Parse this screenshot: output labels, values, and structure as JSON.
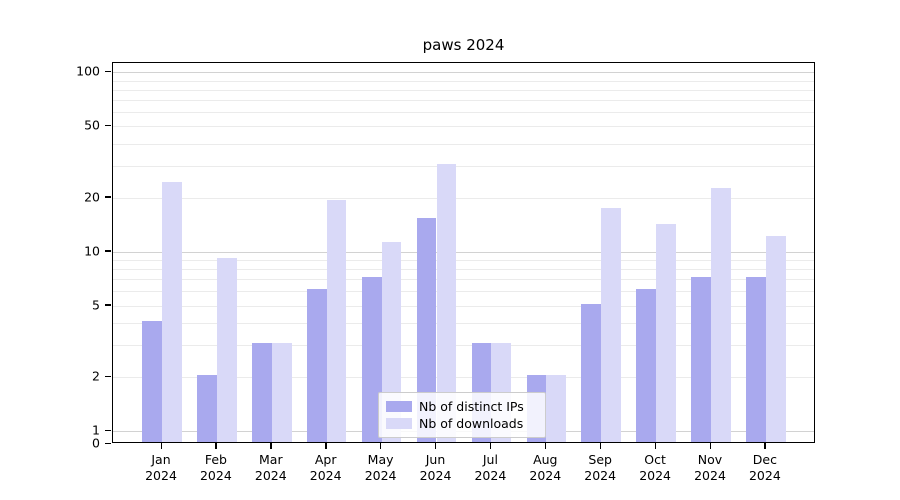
{
  "title": "paws 2024",
  "legend": {
    "items": [
      {
        "label": "Nb of distinct IPs",
        "color": "#a9a9ee"
      },
      {
        "label": "Nb of downloads",
        "color": "#d9d9f8"
      }
    ]
  },
  "axes": {
    "y_scale": "log",
    "y_tick_values": [
      100,
      50,
      20,
      10,
      5,
      2,
      1,
      0
    ],
    "y_minor_gridlines": [
      90,
      80,
      70,
      60,
      50,
      40,
      30,
      20,
      9,
      8,
      7,
      6,
      5,
      4,
      3,
      2
    ],
    "y_major_gridlines": [
      100,
      10,
      1
    ],
    "x_tick_months": [
      "Jan",
      "Feb",
      "Mar",
      "Apr",
      "May",
      "Jun",
      "Jul",
      "Aug",
      "Sep",
      "Oct",
      "Nov",
      "Dec"
    ],
    "x_tick_year": "2024"
  },
  "chart_data": {
    "type": "bar",
    "title": "paws 2024",
    "categories": [
      "Jan 2024",
      "Feb 2024",
      "Mar 2024",
      "Apr 2024",
      "May 2024",
      "Jun 2024",
      "Jul 2024",
      "Aug 2024",
      "Sep 2024",
      "Oct 2024",
      "Nov 2024",
      "Dec 2024"
    ],
    "series": [
      {
        "name": "Nb of distinct IPs",
        "color": "#a9a9ee",
        "values": [
          4,
          2,
          3,
          6,
          7,
          15,
          3,
          2,
          5,
          6,
          7,
          7
        ]
      },
      {
        "name": "Nb of downloads",
        "color": "#d9d9f8",
        "values": [
          24,
          9,
          3,
          19,
          11,
          30,
          3,
          2,
          17,
          14,
          22,
          12
        ]
      }
    ],
    "xlabel": "",
    "ylabel": "",
    "ylim": [
      0,
      130
    ],
    "yscale": "log",
    "yticks": [
      0,
      1,
      2,
      5,
      10,
      20,
      50,
      100
    ],
    "grid": true,
    "legend_position": "lower center"
  },
  "colors": {
    "bar_distinct_ips": "#a9a9ee",
    "bar_downloads": "#d9d9f8",
    "gridline_minor": "#ebebeb",
    "gridline_major": "#d2d2d2",
    "spine": "#000000",
    "background": "#ffffff"
  }
}
